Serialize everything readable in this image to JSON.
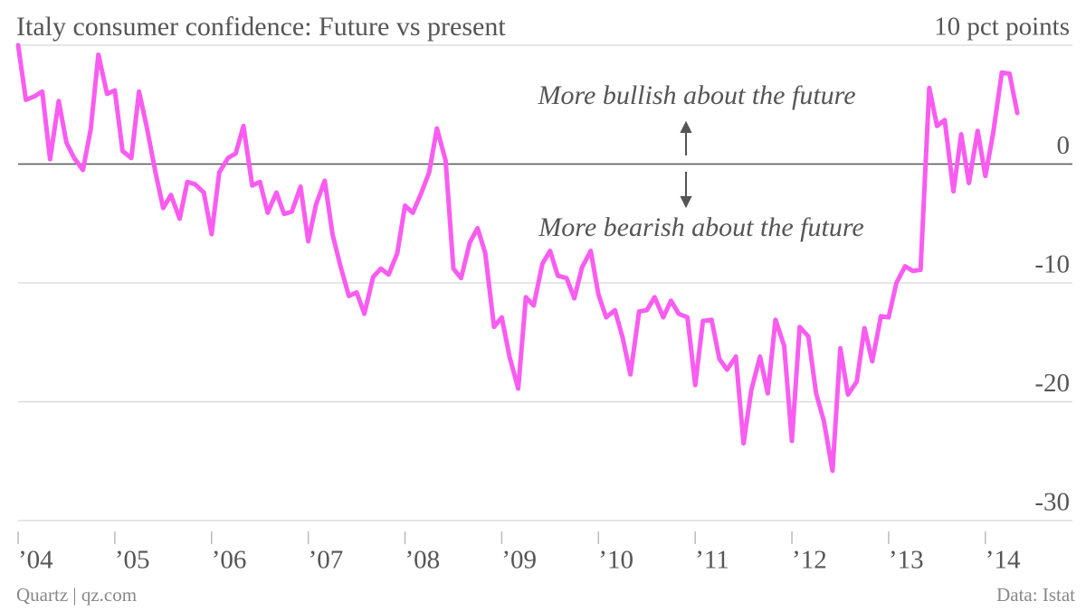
{
  "chart_data": {
    "type": "line",
    "title": "Italy consumer confidence: Future vs present",
    "annotations": [
      "More bullish about the future",
      "More bearish about the future"
    ],
    "source": "Data: Istat",
    "credit": "Quartz | qz.com",
    "color": "#f95cf0",
    "x": [
      2004,
      2004.08,
      2004.17,
      2004.25,
      2004.33,
      2004.42,
      2004.5,
      2004.58,
      2004.67,
      2004.75,
      2004.83,
      2004.92,
      2005,
      2005.08,
      2005.17,
      2005.25,
      2005.33,
      2005.42,
      2005.5,
      2005.58,
      2005.67,
      2005.75,
      2005.83,
      2005.92,
      2006,
      2006.08,
      2006.17,
      2006.25,
      2006.33,
      2006.42,
      2006.5,
      2006.58,
      2006.67,
      2006.75,
      2006.83,
      2006.92,
      2007,
      2007.08,
      2007.17,
      2007.25,
      2007.33,
      2007.42,
      2007.5,
      2007.58,
      2007.67,
      2007.75,
      2007.83,
      2007.92,
      2008,
      2008.08,
      2008.17,
      2008.25,
      2008.33,
      2008.42,
      2008.5,
      2008.58,
      2008.67,
      2008.75,
      2008.83,
      2008.92,
      2009,
      2009.08,
      2009.17,
      2009.25,
      2009.33,
      2009.42,
      2009.5,
      2009.58,
      2009.67,
      2009.75,
      2009.83,
      2009.92,
      2010,
      2010.08,
      2010.17,
      2010.25,
      2010.33,
      2010.42,
      2010.5,
      2010.58,
      2010.67,
      2010.75,
      2010.83,
      2010.92,
      2011,
      2011.08,
      2011.17,
      2011.25,
      2011.33,
      2011.42,
      2011.5,
      2011.58,
      2011.67,
      2011.75,
      2011.83,
      2011.92,
      2012,
      2012.08,
      2012.17,
      2012.25,
      2012.33,
      2012.42,
      2012.5,
      2012.58,
      2012.67,
      2012.75,
      2012.83,
      2012.92,
      2013,
      2013.08,
      2013.17,
      2013.25,
      2013.33,
      2013.42,
      2013.5,
      2013.58,
      2013.67,
      2013.75,
      2013.83,
      2013.92,
      2014,
      2014.08,
      2014.17,
      2014.25,
      2014.33
    ],
    "values": [
      10.0,
      5.4,
      5.7,
      6.1,
      0.4,
      5.3,
      1.8,
      0.5,
      -0.5,
      2.9,
      9.2,
      5.9,
      6.2,
      1.1,
      0.5,
      6.1,
      3.1,
      -0.7,
      -3.7,
      -2.6,
      -4.6,
      -1.5,
      -1.7,
      -2.4,
      -5.9,
      -0.7,
      0.5,
      0.9,
      3.2,
      -1.8,
      -1.5,
      -4.1,
      -2.4,
      -4.2,
      -4.0,
      -1.9,
      -6.5,
      -3.4,
      -1.4,
      -5.9,
      -8.5,
      -11.1,
      -10.8,
      -12.6,
      -9.5,
      -8.8,
      -9.3,
      -7.5,
      -3.5,
      -4.1,
      -2.4,
      -0.7,
      3.0,
      0.3,
      -8.8,
      -9.6,
      -6.6,
      -5.4,
      -7.5,
      -13.7,
      -12.9,
      -16.2,
      -18.9,
      -11.2,
      -11.9,
      -8.4,
      -7.3,
      -9.4,
      -9.6,
      -11.3,
      -8.7,
      -7.3,
      -11.0,
      -12.9,
      -12.3,
      -14.6,
      -17.7,
      -12.4,
      -12.3,
      -11.2,
      -12.9,
      -11.5,
      -12.6,
      -12.9,
      -18.6,
      -13.2,
      -13.1,
      -16.4,
      -17.3,
      -16.2,
      -23.5,
      -19.0,
      -16.2,
      -19.3,
      -13.1,
      -15.3,
      -23.3,
      -13.7,
      -14.5,
      -19.3,
      -21.6,
      -25.8,
      -15.5,
      -19.4,
      -18.3,
      -13.8,
      -16.6,
      -12.8,
      -12.9,
      -10.0,
      -8.6,
      -9.0,
      -8.9,
      6.4,
      3.2,
      3.7,
      -2.3,
      2.5,
      -1.6,
      2.8,
      -1.0,
      2.6,
      7.7,
      7.6,
      4.3
    ],
    "xlim": [
      2004,
      2014.9
    ],
    "xticks": [
      {
        "value": 2004,
        "label": "’04"
      },
      {
        "value": 2005,
        "label": "’05"
      },
      {
        "value": 2006,
        "label": "’06"
      },
      {
        "value": 2007,
        "label": "’07"
      },
      {
        "value": 2008,
        "label": "’08"
      },
      {
        "value": 2009,
        "label": "’09"
      },
      {
        "value": 2010,
        "label": "’10"
      },
      {
        "value": 2011,
        "label": "’11"
      },
      {
        "value": 2012,
        "label": "’12"
      },
      {
        "value": 2013,
        "label": "’13"
      },
      {
        "value": 2014,
        "label": "’14"
      }
    ],
    "ylim": [
      -30,
      10
    ],
    "yticks": [
      {
        "value": 10,
        "label": "10 pct points"
      },
      0,
      -10,
      -20,
      -30
    ],
    "grid": true
  }
}
